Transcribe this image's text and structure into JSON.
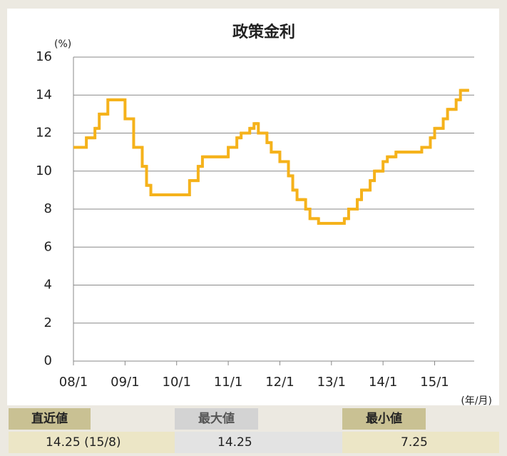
{
  "chart_data": {
    "type": "step",
    "title": "政策金利",
    "y_unit": "(%)",
    "x_unit": "(年/月)",
    "categories": [
      "08/1",
      null,
      null,
      null,
      null,
      null,
      null,
      null,
      null,
      null,
      null,
      null,
      "09/1",
      null,
      null,
      null,
      null,
      null,
      null,
      null,
      null,
      null,
      null,
      null,
      "10/1",
      null,
      null,
      null,
      null,
      null,
      null,
      null,
      null,
      null,
      null,
      null,
      "11/1",
      null,
      null,
      null,
      null,
      null,
      null,
      null,
      null,
      null,
      null,
      null,
      "12/1",
      null,
      null,
      null,
      null,
      null,
      null,
      null,
      null,
      null,
      null,
      null,
      "13/1",
      null,
      null,
      null,
      null,
      null,
      null,
      null,
      null,
      null,
      null,
      null,
      "14/1",
      null,
      null,
      null,
      null,
      null,
      null,
      null,
      null,
      null,
      null,
      null,
      "15/1",
      null,
      null,
      null,
      null,
      null,
      null,
      null
    ],
    "series": [
      {
        "name": "政策金利",
        "color": "#f5b21b",
        "values": [
          11.25,
          11.25,
          11.25,
          11.75,
          11.75,
          12.25,
          13.0,
          13.0,
          13.75,
          13.75,
          13.75,
          13.75,
          12.75,
          12.75,
          11.25,
          11.25,
          10.25,
          9.25,
          8.75,
          8.75,
          8.75,
          8.75,
          8.75,
          8.75,
          8.75,
          8.75,
          8.75,
          9.5,
          9.5,
          10.25,
          10.75,
          10.75,
          10.75,
          10.75,
          10.75,
          10.75,
          11.25,
          11.25,
          11.75,
          12.0,
          12.0,
          12.25,
          12.5,
          12.0,
          12.0,
          11.5,
          11.0,
          11.0,
          10.5,
          10.5,
          9.75,
          9.0,
          8.5,
          8.5,
          8.0,
          7.5,
          7.5,
          7.25,
          7.25,
          7.25,
          7.25,
          7.25,
          7.25,
          7.5,
          8.0,
          8.0,
          8.5,
          9.0,
          9.0,
          9.5,
          10.0,
          10.0,
          10.5,
          10.75,
          10.75,
          11.0,
          11.0,
          11.0,
          11.0,
          11.0,
          11.0,
          11.25,
          11.25,
          11.75,
          12.25,
          12.25,
          12.75,
          13.25,
          13.25,
          13.75,
          14.25,
          14.25
        ]
      }
    ],
    "ylim": [
      0,
      16
    ],
    "yticks": [
      0,
      2,
      4,
      6,
      8,
      10,
      12,
      14,
      16
    ],
    "grid": true,
    "summary": {
      "latest": {
        "label": "直近値",
        "value": "14.25 (15/8)"
      },
      "max": {
        "label": "最大値",
        "value": "14.25"
      },
      "min": {
        "label": "最小値",
        "value": "7.25"
      }
    }
  }
}
